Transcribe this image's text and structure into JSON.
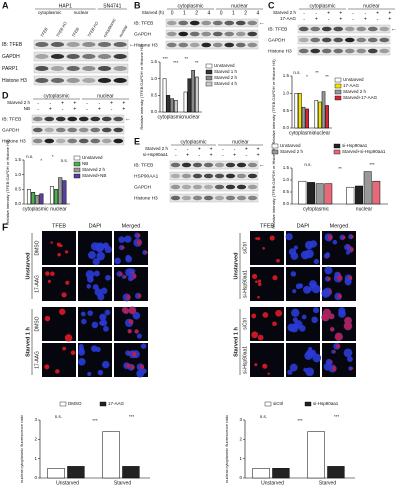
{
  "panels": [
    {
      "letter": "A",
      "groups": [
        {
          "name": "HAP1",
          "fractions": [
            "cytoplasmic",
            "nuclear"
          ]
        },
        {
          "name": "SN4741"
        }
      ],
      "lanes": [
        "TFEB",
        "TFEB KO",
        "TFEB",
        "TFEB KO",
        "cytoplasmic",
        "nuclear"
      ],
      "rows": [
        "IB: TFEB",
        "GAPDH",
        "PARP1",
        "Histone H3"
      ]
    },
    {
      "letter": "B",
      "fractions": [
        "cytoplasmic",
        "nuclear"
      ],
      "conditions": [
        {
          "name": "Starved (h)",
          "marks": [
            "0",
            "1",
            "2",
            "4",
            "0",
            "1",
            "2",
            "4"
          ]
        }
      ],
      "rows": [
        "IB: TFEB",
        "GAPDH",
        "Histone H3"
      ]
    },
    {
      "letter": "C",
      "fractions": [
        "cytoplasmic",
        "nuclear"
      ],
      "conditions": [
        {
          "name": "Starved 2 h",
          "marks": [
            "-",
            "-",
            "+",
            "+",
            "-",
            "-",
            "+",
            "+"
          ]
        },
        {
          "name": "17-AAG",
          "marks": [
            "-",
            "+",
            "-",
            "+",
            "-",
            "+",
            "-",
            "+"
          ]
        }
      ],
      "rows": [
        "IB: TFEB",
        "GAPDH",
        "Histone H3"
      ]
    },
    {
      "letter": "D",
      "fractions": [
        "cytoplasmic",
        "nuclear"
      ],
      "conditions": [
        {
          "name": "Starved 2 h",
          "marks": [
            "-",
            "-",
            "+",
            "+",
            "-",
            "-",
            "+",
            "+"
          ]
        },
        {
          "name": "NB",
          "marks": [
            "-",
            "+",
            "-",
            "+",
            "-",
            "+",
            "-",
            "+"
          ]
        }
      ],
      "rows": [
        "IB: TFEB",
        "GAPDH",
        "Histone H3"
      ]
    },
    {
      "letter": "E",
      "fractions": [
        "cytoplasmic",
        "nuclear"
      ],
      "conditions": [
        {
          "name": "Starved 2 h",
          "marks": [
            "-",
            "-",
            "+",
            "+",
            "-",
            "-",
            "+",
            "+"
          ]
        },
        {
          "name": "si-Hsp90aa1",
          "marks": [
            "-",
            "+",
            "-",
            "+",
            "-",
            "+",
            "-",
            "+"
          ]
        }
      ],
      "rows": [
        "IB: TFEB",
        "HSP90AA1",
        "GAPDH",
        "Histone H3"
      ]
    }
  ],
  "microscopy": {
    "letter": "F",
    "blocks": [
      {
        "columns": [
          "TFEB",
          "DAPI",
          "Merged"
        ],
        "groups": [
          {
            "name": "Unstarved",
            "rows": [
              "DMSO",
              "17-AAG"
            ]
          },
          {
            "name": "Starved 1 h",
            "rows": [
              "DMSO",
              "17-AAG"
            ]
          }
        ]
      },
      {
        "columns": [
          "TFEB",
          "DAPI",
          "Merged"
        ],
        "groups": [
          {
            "name": "Unstarved",
            "rows": [
              "siCtrl",
              "si-Hsp90aa1"
            ]
          },
          {
            "name": "Starved 1 h",
            "rows": [
              "siCtrl",
              "si-Hsp90aa1"
            ]
          }
        ]
      }
    ]
  },
  "chart_data": [
    {
      "type": "bar",
      "ylabel": "Relative intensity (TFEB:GAPDH or Histone H3)",
      "categories": [
        "cytoplasmic",
        "nuclear"
      ],
      "series": [
        {
          "name": "Unstarved",
          "color": "#ffffff",
          "values": [
            1.0,
            0.6
          ]
        },
        {
          "name": "Starved 1 h",
          "color": "#333333",
          "values": [
            0.5,
            1.0
          ]
        },
        {
          "name": "Starved 2 h",
          "color": "#888888",
          "values": [
            0.4,
            1.25
          ]
        },
        {
          "name": "Starved 4 h",
          "color": "#cccccc",
          "values": [
            0.35,
            1.05
          ]
        }
      ],
      "ylim": [
        0,
        1.5
      ],
      "yticks": [
        {
          "value": 0,
          "label": "0.0"
        },
        0.5,
        {
          "value": 1,
          "label": "1.0"
        },
        1.5
      ],
      "annotations": [
        "***",
        "***",
        "**",
        "**"
      ]
    },
    {
      "type": "bar",
      "ylabel": "Relative intensity (TFEB:GAPDH or Histone H3)",
      "categories": [
        "cytoplasmic",
        "nuclear"
      ],
      "series": [
        {
          "name": "Unstarved",
          "color": "#ffffff",
          "values": [
            1.0,
            0.8
          ]
        },
        {
          "name": "17-AAG",
          "color": "#f2e600",
          "values": [
            1.0,
            0.75
          ]
        },
        {
          "name": "Starved 2 h",
          "color": "#999999",
          "values": [
            0.6,
            1.05
          ]
        },
        {
          "name": "Starved+17-AAG",
          "color": "#d4283a",
          "values": [
            0.55,
            0.65
          ]
        }
      ],
      "ylim": [
        0,
        1.5
      ],
      "yticks": [
        {
          "value": 0,
          "label": "0.0"
        },
        0.5,
        {
          "value": 1,
          "label": "1.0"
        },
        1.5
      ],
      "annotations": [
        "n.s.",
        "*",
        "**",
        "**"
      ]
    },
    {
      "type": "bar",
      "ylabel": "Relative intensity (TFEB:GAPDH or Histone H3)",
      "categories": [
        "cytoplasmic",
        "nuclear"
      ],
      "series": [
        {
          "name": "Unstarved",
          "color": "#ffffff",
          "values": [
            0.5,
            0.6
          ]
        },
        {
          "name": "NB",
          "color": "#4caf50",
          "values": [
            0.4,
            0.5
          ]
        },
        {
          "name": "Starved 2 h",
          "color": "#999999",
          "values": [
            0.3,
            0.9
          ]
        },
        {
          "name": "Starved+NB",
          "color": "#5b3fa0",
          "values": [
            0.35,
            0.8
          ]
        }
      ],
      "ylim": [
        0,
        1.5
      ],
      "yticks": [
        {
          "value": 0,
          "label": "0.0"
        },
        0.5,
        {
          "value": 1,
          "label": "1.0"
        },
        1.5
      ],
      "annotations": [
        "n.s.",
        "*",
        "*",
        "n.s."
      ]
    },
    {
      "type": "bar",
      "ylabel": "Relative intensity (TFEB:GAPDH or Histone H3)",
      "categories": [
        "cytoplasmic",
        "nuclear"
      ],
      "series": [
        {
          "name": "Unstarved",
          "color": "#ffffff",
          "values": [
            0.95,
            0.7
          ]
        },
        {
          "name": "si-Hsp90aa1",
          "color": "#222222",
          "values": [
            0.9,
            0.75
          ]
        },
        {
          "name": "Starved 2 h",
          "color": "#999999",
          "values": [
            0.85,
            1.35
          ]
        },
        {
          "name": "Starved+si-Hsp90aa1",
          "color": "#e86a7a",
          "values": [
            0.85,
            0.95
          ]
        }
      ],
      "ylim": [
        0,
        1.5
      ],
      "yticks": [
        {
          "value": 0,
          "label": "0.0"
        },
        0.5,
        {
          "value": 1,
          "label": "1.0"
        },
        1.5
      ],
      "annotations": [
        "n.s.",
        "**",
        "***"
      ]
    },
    {
      "type": "bar",
      "ylabel": "nuclear:cytoplasmic fluorescence ratio",
      "categories": [
        "Unstarved",
        "Starved"
      ],
      "series": [
        {
          "name": "DMSO",
          "color": "#ffffff",
          "values": [
            0.5,
            2.4
          ]
        },
        {
          "name": "17-AAG",
          "color": "#222222",
          "values": [
            0.6,
            0.6
          ]
        }
      ],
      "ylim": [
        0,
        3
      ],
      "yticks": [
        0,
        1,
        2,
        3
      ],
      "annotations": [
        "n.s.",
        "***",
        "***"
      ]
    },
    {
      "type": "bar",
      "ylabel": "nuclear:cytoplasmic fluorescence ratio",
      "categories": [
        "Unstarved",
        "Starved"
      ],
      "series": [
        {
          "name": "siCtrl",
          "color": "#ffffff",
          "values": [
            0.5,
            2.4
          ]
        },
        {
          "name": "si-Hsp90aa1",
          "color": "#222222",
          "values": [
            0.5,
            0.6
          ]
        }
      ],
      "ylim": [
        0,
        3
      ],
      "yticks": [
        0,
        1,
        2,
        3
      ],
      "annotations": [
        "n.s.",
        "***",
        "***"
      ]
    }
  ]
}
